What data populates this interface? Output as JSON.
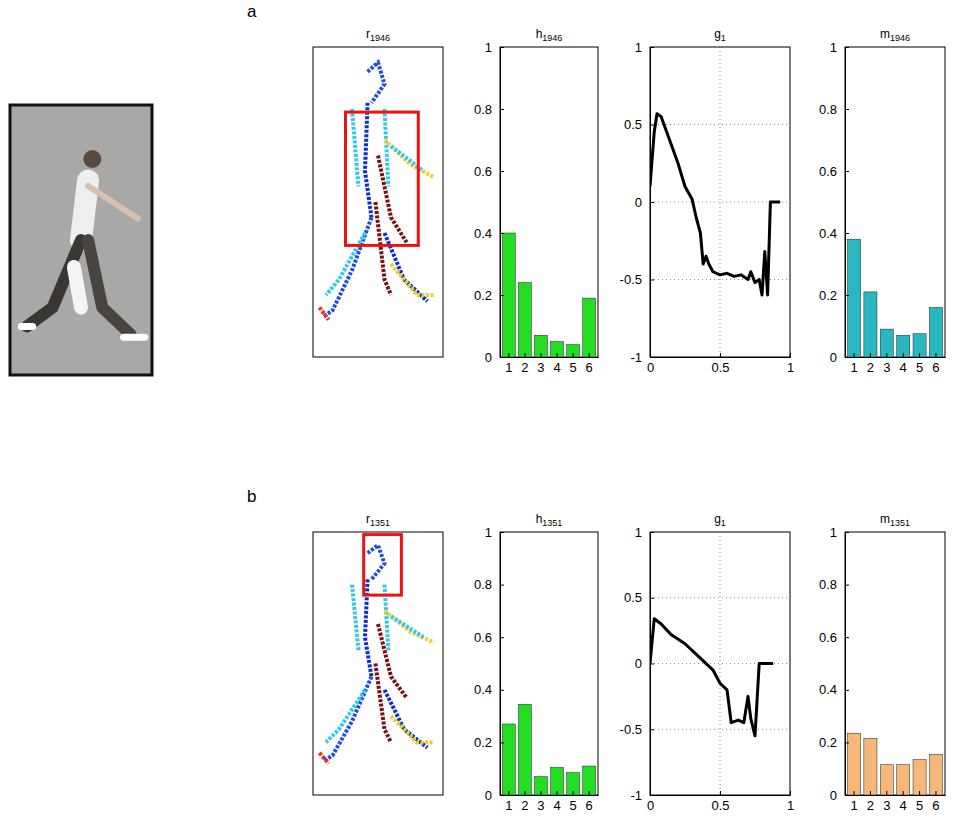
{
  "chart_data": [
    {
      "type": "image",
      "title": "r1946",
      "annotations": [
        "a"
      ],
      "tick_labels": false
    },
    {
      "type": "bar",
      "title": "h1946",
      "categories": [
        "1",
        "2",
        "3",
        "4",
        "5",
        "6"
      ],
      "values": [
        0.4,
        0.24,
        0.07,
        0.05,
        0.04,
        0.19
      ],
      "color": "#22dd22",
      "ylim": [
        0,
        1
      ],
      "yticks": [
        0,
        0.2,
        0.4,
        0.6,
        0.8,
        1
      ]
    },
    {
      "type": "line",
      "title": "g1",
      "x": [
        0,
        0.03,
        0.05,
        0.08,
        0.12,
        0.2,
        0.25,
        0.3,
        0.33,
        0.36,
        0.38,
        0.4,
        0.42,
        0.45,
        0.5,
        0.55,
        0.6,
        0.65,
        0.7,
        0.72,
        0.75,
        0.78,
        0.8,
        0.82,
        0.84,
        0.86,
        0.93
      ],
      "values": [
        0.1,
        0.45,
        0.57,
        0.55,
        0.45,
        0.25,
        0.1,
        0.02,
        -0.1,
        -0.2,
        -0.4,
        -0.35,
        -0.4,
        -0.45,
        -0.47,
        -0.46,
        -0.48,
        -0.47,
        -0.5,
        -0.45,
        -0.52,
        -0.5,
        -0.6,
        -0.32,
        -0.6,
        0,
        0
      ],
      "color": "#000000",
      "xlim": [
        0,
        1
      ],
      "xticks": [
        0,
        0.5,
        1
      ],
      "ylim": [
        -1,
        1
      ],
      "yticks": [
        -1,
        -0.5,
        0,
        0.5,
        1
      ],
      "grid": true
    },
    {
      "type": "bar",
      "title": "m1946",
      "categories": [
        "1",
        "2",
        "3",
        "4",
        "5",
        "6"
      ],
      "values": [
        0.38,
        0.21,
        0.09,
        0.07,
        0.075,
        0.16
      ],
      "color": "#2ab7bf",
      "ylim": [
        0,
        1
      ],
      "yticks": [
        0,
        0.2,
        0.4,
        0.6,
        0.8,
        1
      ]
    },
    {
      "type": "image",
      "title": "r1351",
      "annotations": [
        "b"
      ],
      "tick_labels": false
    },
    {
      "type": "bar",
      "title": "h1351",
      "categories": [
        "1",
        "2",
        "3",
        "4",
        "5",
        "6"
      ],
      "values": [
        0.27,
        0.345,
        0.07,
        0.105,
        0.085,
        0.11
      ],
      "color": "#22dd22",
      "ylim": [
        0,
        1
      ],
      "yticks": [
        0,
        0.2,
        0.4,
        0.6,
        0.8,
        1
      ]
    },
    {
      "type": "line",
      "title": "g1",
      "x": [
        0,
        0.03,
        0.08,
        0.15,
        0.25,
        0.35,
        0.45,
        0.5,
        0.55,
        0.58,
        0.63,
        0.67,
        0.7,
        0.72,
        0.75,
        0.78,
        0.88
      ],
      "values": [
        0,
        0.34,
        0.3,
        0.22,
        0.15,
        0.05,
        -0.05,
        -0.15,
        -0.2,
        -0.45,
        -0.43,
        -0.45,
        -0.25,
        -0.42,
        -0.55,
        0,
        0
      ],
      "color": "#000000",
      "xlim": [
        0,
        1
      ],
      "xticks": [
        0,
        0.5,
        1
      ],
      "ylim": [
        -1,
        1
      ],
      "yticks": [
        -1,
        -0.5,
        0,
        0.5,
        1
      ],
      "grid": true
    },
    {
      "type": "bar",
      "title": "m1351",
      "categories": [
        "1",
        "2",
        "3",
        "4",
        "5",
        "6"
      ],
      "values": [
        0.235,
        0.215,
        0.115,
        0.115,
        0.135,
        0.155
      ],
      "color": "#f5b87a",
      "ylim": [
        0,
        1
      ],
      "yticks": [
        0,
        0.2,
        0.4,
        0.6,
        0.8,
        1
      ]
    }
  ]
}
